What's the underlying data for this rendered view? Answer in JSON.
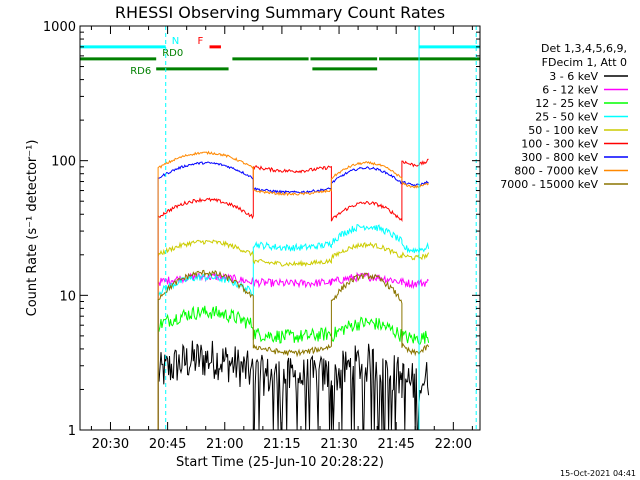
{
  "chart_data": {
    "type": "line",
    "title": "RHESSI Observing Summary Count Rates",
    "xlabel": "Start Time (25-Jun-10 20:28:22)",
    "ylabel": "Count Rate (s⁻¹ detector⁻¹)",
    "yscale": "log",
    "ylim": [
      1,
      1000
    ],
    "xlim_minutes": [
      -8,
      97
    ],
    "x_ticks": [
      {
        "t": 0,
        "label": "20:30"
      },
      {
        "t": 15,
        "label": "20:45"
      },
      {
        "t": 30,
        "label": "21:00"
      },
      {
        "t": 45,
        "label": "21:15"
      },
      {
        "t": 60,
        "label": "21:30"
      },
      {
        "t": 75,
        "label": "21:45"
      },
      {
        "t": 90,
        "label": "22:00"
      }
    ],
    "y_ticks": [
      {
        "v": 1,
        "label": "1"
      },
      {
        "v": 10,
        "label": "10"
      },
      {
        "v": 100,
        "label": "100"
      },
      {
        "v": 1000,
        "label": "1000"
      }
    ],
    "data_window_minutes": [
      12.5,
      83.5
    ],
    "segments": [
      {
        "start": 12.5,
        "end": 37.5
      },
      {
        "start": 37.5,
        "end": 58.0
      },
      {
        "start": 58.0,
        "end": 76.5
      },
      {
        "start": 76.5,
        "end": 83.5
      }
    ],
    "series": [
      {
        "name": "3 - 6 keV",
        "color": "#000000",
        "levels": [
          2.6,
          2.6,
          2.4,
          2.4
        ],
        "curve": 1.3,
        "noise": 0.35
      },
      {
        "name": "6 - 12 keV",
        "color": "#ff00ff",
        "levels": [
          12.5,
          12.5,
          12.5,
          12.5
        ],
        "curve": 1.1,
        "noise": 0.07
      },
      {
        "name": "12 - 25 keV",
        "color": "#00ff00",
        "levels": [
          6.0,
          5.2,
          5.0,
          5.0
        ],
        "curve": 1.25,
        "noise": 0.12
      },
      {
        "name": "25 - 50 keV",
        "color": "#00ffff",
        "levels": [
          10.5,
          24.0,
          25.0,
          23.0
        ],
        "curve": 1.3,
        "noise": 0.06
      },
      {
        "name": "50 - 100 keV",
        "color": "#cccc00",
        "levels": [
          20.0,
          18.0,
          19.0,
          20.0
        ],
        "curve": 1.25,
        "noise": 0.04
      },
      {
        "name": "100 - 300 keV",
        "color": "#ff0000",
        "levels": [
          38.0,
          90.0,
          36.0,
          100.0
        ],
        "curve": 1.35,
        "noise": 0.03
      },
      {
        "name": "300 - 800 keV",
        "color": "#0000ff",
        "levels": [
          74.0,
          62.0,
          68.0,
          70.0
        ],
        "curve": 1.3,
        "noise": 0.02
      },
      {
        "name": "800 - 7000 keV",
        "color": "#ff8800",
        "levels": [
          88.0,
          60.0,
          74.0,
          68.0
        ],
        "curve": 1.3,
        "noise": 0.02
      },
      {
        "name": "7000 - 15000 keV",
        "color": "#8b7500",
        "levels": [
          9.5,
          4.2,
          9.0,
          4.2
        ],
        "curve": 1.55,
        "noise": 0.05
      }
    ],
    "state_bars": [
      {
        "label": "N",
        "color": "#00ffff",
        "y": 700,
        "intervals": [
          [
            -8,
            14.5
          ],
          [
            81,
            97
          ]
        ]
      },
      {
        "label": "RD0",
        "color": "#008000",
        "y": 570,
        "intervals": [
          [
            -8,
            12
          ]
        ]
      },
      {
        "label": "RD6",
        "color": "#008000",
        "y": 480,
        "intervals": [
          [
            12,
            31
          ]
        ]
      },
      {
        "label": "",
        "color": "#008000",
        "y": 570,
        "intervals": [
          [
            32,
            52
          ],
          [
            52.5,
            70
          ],
          [
            70.5,
            97
          ]
        ]
      },
      {
        "label": "",
        "color": "#008000",
        "y": 480,
        "intervals": [
          [
            53,
            70
          ]
        ]
      },
      {
        "label": "F",
        "color": "#ff0000",
        "y": 700,
        "intervals": [
          [
            26,
            29
          ]
        ]
      }
    ],
    "vertical_lines": [
      {
        "t": -8,
        "color": "#00ffff",
        "style": "solid"
      },
      {
        "t": 14.5,
        "color": "#00ffff",
        "style": "dashed"
      },
      {
        "t": 81,
        "color": "#00ffff",
        "style": "solid"
      },
      {
        "t": 96,
        "color": "#00ffff",
        "style": "dashed"
      }
    ]
  },
  "legend": {
    "header1": "Det 1,3,4,5,6,9,",
    "header2": "FDecim 1, Att 0"
  },
  "footer": {
    "timestamp": "15-Oct-2021 04:41"
  }
}
